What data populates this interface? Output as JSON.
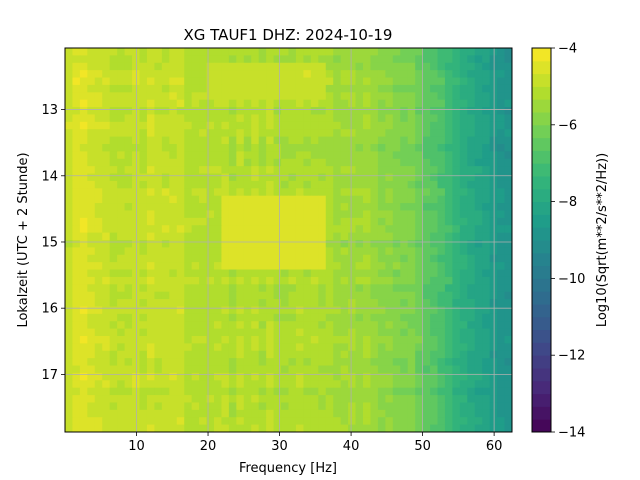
{
  "chart_data": {
    "type": "heatmap",
    "title": "XG TAUF1  DHZ: 2024-10-19",
    "xlabel": "Frequency [Hz]",
    "ylabel": "Lokalzeit (UTC + 2 Stunde)",
    "colorbar_label": "Log10(Sqrt(m**2/s**2/Hz))",
    "xlim": [
      0,
      62.5
    ],
    "ylim": [
      12.07,
      17.87
    ],
    "y_inverted": true,
    "x_ticks": [
      10,
      20,
      30,
      40,
      50,
      60
    ],
    "y_ticks": [
      13,
      14,
      15,
      16,
      17
    ],
    "colorbar_range": [
      -14,
      -4
    ],
    "colorbar_ticks": [
      -4,
      -6,
      -8,
      -10,
      -12,
      -14
    ],
    "colorbar_levels": 30,
    "colormap": "viridis",
    "grid": true,
    "frequency_profile": {
      "x": [
        0,
        2,
        5,
        10,
        15,
        20,
        25,
        30,
        35,
        40,
        45,
        48,
        50,
        52,
        55,
        58,
        60,
        62.5
      ],
      "values": [
        -5.0,
        -4.6,
        -4.8,
        -4.9,
        -4.9,
        -5.0,
        -5.2,
        -5.1,
        -5.2,
        -5.4,
        -5.7,
        -5.9,
        -6.3,
        -6.9,
        -7.6,
        -8.2,
        -8.6,
        -8.8
      ]
    },
    "bright_bands": [
      {
        "x_range": [
          22,
          36
        ],
        "y_range": [
          14.35,
          15.4
        ],
        "value": -4.5
      },
      {
        "x_range": [
          20,
          36
        ],
        "y_range": [
          12.3,
          12.9
        ],
        "value": -4.8
      }
    ]
  }
}
